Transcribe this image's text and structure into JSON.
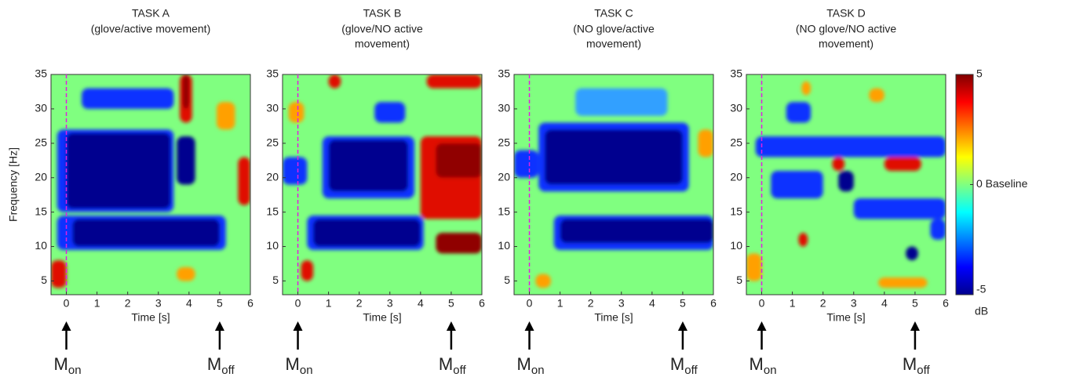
{
  "chart_data": [
    {
      "type": "heatmap",
      "title": "TASK A",
      "subtitle_lines": [
        "(glove/active movement)"
      ],
      "xlabel": "Time [s]",
      "ylabel": "Frequency [Hz]",
      "xlim": [
        -0.5,
        6
      ],
      "xticks": [
        0,
        1,
        2,
        3,
        4,
        5,
        6
      ],
      "ylim": [
        3,
        35
      ],
      "yticks": [
        5,
        10,
        15,
        20,
        25,
        30,
        35
      ],
      "vline": 0,
      "vline_color": "#e020e0",
      "annotations": [
        {
          "text": "M",
          "sub": "on",
          "x": 0
        },
        {
          "text": "M",
          "sub": "off",
          "x": 5
        }
      ]
    },
    {
      "type": "heatmap",
      "title": "TASK B",
      "subtitle_lines": [
        "(glove/NO active",
        "movement)"
      ],
      "xlabel": "Time [s]",
      "xlim": [
        -0.5,
        6
      ],
      "xticks": [
        0,
        1,
        2,
        3,
        4,
        5,
        6
      ],
      "ylim": [
        3,
        35
      ],
      "yticks": [
        5,
        10,
        15,
        20,
        25,
        30,
        35
      ],
      "vline": 0,
      "vline_color": "#e020e0",
      "annotations": [
        {
          "text": "M",
          "sub": "on",
          "x": 0
        },
        {
          "text": "M",
          "sub": "off",
          "x": 5
        }
      ]
    },
    {
      "type": "heatmap",
      "title": "TASK C",
      "subtitle_lines": [
        "(NO glove/active",
        "movement)"
      ],
      "xlabel": "Time [s]",
      "xlim": [
        -0.5,
        6
      ],
      "xticks": [
        0,
        1,
        2,
        3,
        4,
        5,
        6
      ],
      "ylim": [
        3,
        35
      ],
      "yticks": [
        5,
        10,
        15,
        20,
        25,
        30,
        35
      ],
      "vline": 0,
      "vline_color": "#e020e0",
      "annotations": [
        {
          "text": "M",
          "sub": "on",
          "x": 0
        },
        {
          "text": "M",
          "sub": "off",
          "x": 5
        }
      ]
    },
    {
      "type": "heatmap",
      "title": "TASK D",
      "subtitle_lines": [
        "(NO glove/NO active",
        "movement)"
      ],
      "xlabel": "Time [s]",
      "xlim": [
        -0.5,
        6
      ],
      "xticks": [
        0,
        1,
        2,
        3,
        4,
        5,
        6
      ],
      "ylim": [
        3,
        35
      ],
      "yticks": [
        5,
        10,
        15,
        20,
        25,
        30,
        35
      ],
      "vline": 0,
      "vline_color": "#e020e0",
      "annotations": [
        {
          "text": "M",
          "sub": "on",
          "x": 0
        },
        {
          "text": "M",
          "sub": "off",
          "x": 5
        }
      ]
    }
  ],
  "colorbar": {
    "lim": [
      -5,
      5
    ],
    "ticks": [
      -5,
      {
        "value": 0,
        "label": "0 Baseline"
      },
      5
    ],
    "unit": "dB"
  }
}
